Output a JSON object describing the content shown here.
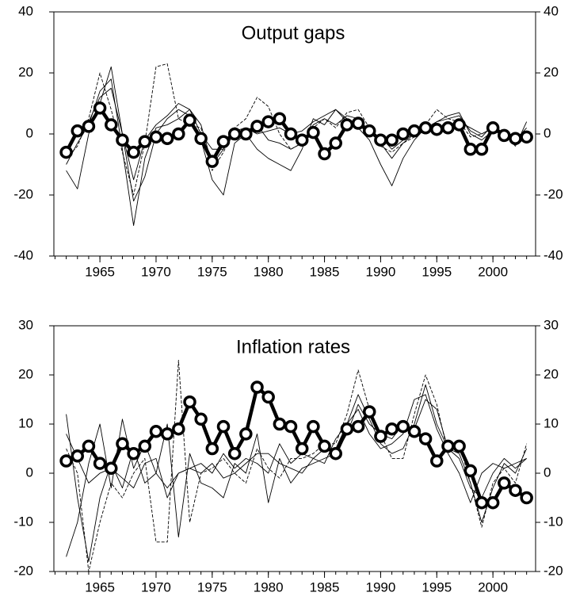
{
  "chart_data": [
    {
      "type": "line",
      "title": "Output gaps",
      "x": [
        1962,
        1963,
        1964,
        1965,
        1966,
        1967,
        1968,
        1969,
        1970,
        1971,
        1972,
        1973,
        1974,
        1975,
        1976,
        1977,
        1978,
        1979,
        1980,
        1981,
        1982,
        1983,
        1984,
        1985,
        1986,
        1987,
        1988,
        1989,
        1990,
        1991,
        1992,
        1993,
        1994,
        1995,
        1996,
        1997,
        1998,
        1999,
        2000,
        2001,
        2002,
        2003
      ],
      "xlim": [
        1960.9,
        2003.8
      ],
      "xticks": [
        1965,
        1970,
        1975,
        1980,
        1985,
        1990,
        1995,
        2000
      ],
      "ylim": [
        -40,
        40
      ],
      "yticks": [
        -40,
        -20,
        0,
        20,
        40
      ],
      "y2lim": [
        -40,
        40
      ],
      "y2ticks": [
        -40,
        -20,
        0,
        20,
        40
      ],
      "series": [
        {
          "color": "#000",
          "dashed": false,
          "values": [
            -10,
            -3,
            3,
            14,
            18,
            -5,
            -30,
            -8,
            2,
            3,
            5,
            8,
            3,
            -10,
            -5,
            0,
            1,
            3,
            -2,
            -3,
            -5,
            -3,
            3,
            5,
            3,
            6,
            5,
            1,
            -3,
            -8,
            -3,
            0,
            1,
            2,
            3,
            4,
            2,
            0,
            2,
            -1,
            -2,
            2
          ]
        },
        {
          "color": "#000",
          "dashed": false,
          "values": [
            -12,
            -18,
            0,
            10,
            22,
            0,
            -22,
            -14,
            0,
            5,
            8,
            6,
            -2,
            -15,
            -20,
            -3,
            0,
            -5,
            -8,
            -10,
            -12,
            -5,
            5,
            3,
            8,
            4,
            2,
            -2,
            -10,
            -17,
            -8,
            -2,
            2,
            4,
            5,
            6,
            1,
            -1,
            3,
            0,
            -4,
            4
          ]
        },
        {
          "color": "#000",
          "dashed": true,
          "values": [
            -8,
            -4,
            5,
            20,
            8,
            -6,
            -20,
            -3,
            22,
            23,
            5,
            3,
            2,
            -12,
            -6,
            2,
            5,
            12,
            9,
            0,
            -5,
            -3,
            2,
            5,
            2,
            7,
            8,
            2,
            -4,
            -6,
            -3,
            -1,
            3,
            8,
            5,
            4,
            -1,
            0,
            2,
            0,
            -3,
            -2
          ]
        },
        {
          "color": "#000",
          "dashed": false,
          "values": [
            -5,
            0,
            4,
            12,
            15,
            0,
            -15,
            -2,
            3,
            6,
            10,
            8,
            0,
            -5,
            -5,
            1,
            2,
            0,
            1,
            2,
            0,
            1,
            4,
            6,
            8,
            5,
            3,
            0,
            -1,
            -5,
            -2,
            0,
            1,
            4,
            6,
            7,
            0,
            -2,
            1,
            1,
            -1,
            1
          ]
        },
        {
          "color": "#000",
          "bold": true,
          "values": [
            -6,
            1,
            2.5,
            8.5,
            3,
            -2,
            -6,
            -2.5,
            -1,
            -1.5,
            0,
            4.5,
            -1.5,
            -9,
            -2.5,
            0,
            0,
            2.5,
            4,
            5,
            0,
            -2,
            0.5,
            -6.5,
            -3,
            3,
            3.5,
            1,
            -2,
            -2,
            0,
            1,
            2,
            1.5,
            2,
            3,
            -5,
            -5,
            2,
            -0.5,
            -1.5,
            -1
          ]
        }
      ]
    },
    {
      "type": "line",
      "title": "Inflation rates",
      "x": [
        1962,
        1963,
        1964,
        1965,
        1966,
        1967,
        1968,
        1969,
        1970,
        1971,
        1972,
        1973,
        1974,
        1975,
        1976,
        1977,
        1978,
        1979,
        1980,
        1981,
        1982,
        1983,
        1984,
        1985,
        1986,
        1987,
        1988,
        1989,
        1990,
        1991,
        1992,
        1993,
        1994,
        1995,
        1996,
        1997,
        1998,
        1999,
        2000,
        2001,
        2002,
        2003
      ],
      "xlim": [
        1960.9,
        2003.8
      ],
      "xticks": [
        1965,
        1970,
        1975,
        1980,
        1985,
        1990,
        1995,
        2000
      ],
      "ylim": [
        -20,
        30
      ],
      "yticks": [
        -20,
        -10,
        0,
        10,
        20,
        30
      ],
      "y2lim": [
        -20,
        30
      ],
      "y2ticks": [
        -20,
        -10,
        0,
        10,
        20,
        30
      ],
      "series": [
        {
          "color": "#000",
          "dashed": false,
          "values": [
            12,
            -5,
            -18,
            -5,
            2,
            -3,
            5,
            -2,
            0,
            -3,
            0,
            1,
            0,
            2,
            -1,
            0,
            2,
            4,
            4,
            2,
            1,
            0,
            3,
            5,
            5,
            10,
            16,
            11,
            6,
            4,
            5,
            10,
            18,
            10,
            5,
            4,
            -2,
            -10,
            -3,
            2,
            0,
            5
          ]
        },
        {
          "color": "#000",
          "dashed": true,
          "values": [
            5,
            0,
            -20,
            -10,
            -2,
            -5,
            0,
            3,
            -14,
            -14,
            23,
            -10,
            0,
            1,
            3,
            0,
            -2,
            5,
            1,
            -1,
            3,
            3,
            4,
            6,
            6,
            12,
            21,
            13,
            8,
            3,
            3,
            12,
            20,
            14,
            4,
            6,
            -2,
            -11,
            -2,
            1,
            -2,
            6
          ]
        },
        {
          "color": "#000",
          "dashed": false,
          "values": [
            -17,
            -10,
            2,
            10,
            -3,
            11,
            1,
            6,
            0,
            10,
            -13,
            4,
            -2,
            -3,
            -5,
            2,
            0,
            8,
            -6,
            3,
            -2,
            1,
            2,
            3,
            4,
            8,
            14,
            10,
            8,
            7,
            10,
            9,
            15,
            13,
            5,
            3,
            -3,
            -5,
            0,
            3,
            1,
            3
          ]
        },
        {
          "color": "#000",
          "dashed": false,
          "values": [
            8,
            3,
            -2,
            0,
            1,
            -1,
            -3,
            2,
            3,
            -5,
            0,
            1,
            2,
            0,
            4,
            1,
            3,
            2,
            0,
            6,
            2,
            4,
            3,
            2,
            7,
            10,
            13,
            8,
            5,
            6,
            8,
            15,
            16,
            9,
            4,
            0,
            -6,
            0,
            2,
            1,
            2,
            3
          ]
        },
        {
          "color": "#000",
          "bold": true,
          "values": [
            2.5,
            3.5,
            5.5,
            2,
            1,
            6,
            4,
            5.5,
            8.5,
            8,
            9,
            14.5,
            11,
            5,
            9.5,
            4,
            8,
            17.5,
            15.5,
            10,
            9.5,
            5,
            9.5,
            5.5,
            4,
            9,
            9.5,
            12.5,
            7.5,
            9,
            9.5,
            8.5,
            7,
            2.5,
            5.5,
            5.5,
            0.5,
            -6,
            -6,
            -2,
            -3.5,
            -5
          ]
        }
      ]
    }
  ]
}
